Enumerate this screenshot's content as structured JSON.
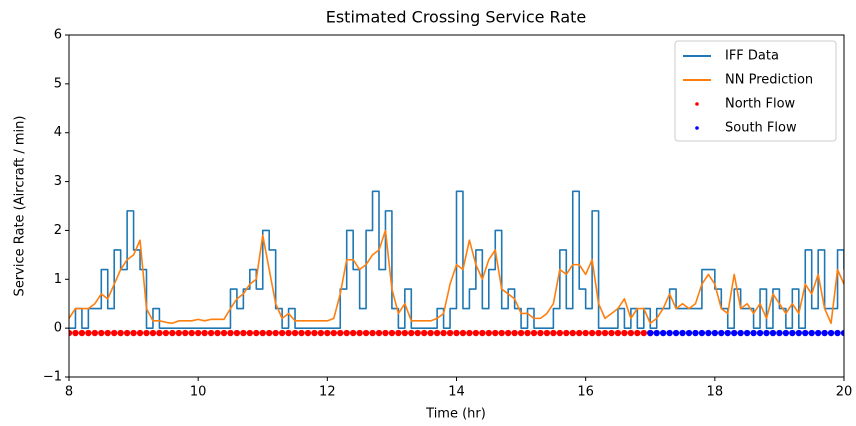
{
  "chart_data": {
    "type": "line",
    "title": "Estimated Crossing Service Rate",
    "x_label": "Time (hr)",
    "y_label": "Service Rate (Aircraft / min)",
    "xlim": [
      8,
      20
    ],
    "ylim": [
      -1,
      6
    ],
    "xticks": [
      8,
      10,
      12,
      14,
      16,
      18,
      20
    ],
    "yticks": [
      {
        "value": -1,
        "label": "−1"
      },
      0,
      1,
      2,
      3,
      4,
      5,
      6
    ],
    "legend": "upper right",
    "series": [
      {
        "name": "IFF Data",
        "color": "#1f77b4",
        "drawstyle": "steps-post",
        "x": [
          8.0,
          8.1,
          8.2,
          8.3,
          8.4,
          8.5,
          8.6,
          8.7,
          8.8,
          8.9,
          9.0,
          9.1,
          9.2,
          9.3,
          9.4,
          9.5,
          9.6,
          9.7,
          9.8,
          9.9,
          10.0,
          10.1,
          10.2,
          10.3,
          10.4,
          10.5,
          10.6,
          10.7,
          10.8,
          10.9,
          11.0,
          11.1,
          11.2,
          11.3,
          11.4,
          11.5,
          11.6,
          11.7,
          11.8,
          11.9,
          12.0,
          12.1,
          12.2,
          12.3,
          12.4,
          12.5,
          12.6,
          12.7,
          12.8,
          12.9,
          13.0,
          13.1,
          13.2,
          13.3,
          13.4,
          13.5,
          13.6,
          13.7,
          13.8,
          13.9,
          14.0,
          14.1,
          14.2,
          14.3,
          14.4,
          14.5,
          14.6,
          14.7,
          14.8,
          14.9,
          15.0,
          15.1,
          15.2,
          15.3,
          15.4,
          15.5,
          15.6,
          15.7,
          15.8,
          15.9,
          16.0,
          16.1,
          16.2,
          16.3,
          16.4,
          16.5,
          16.6,
          16.7,
          16.8,
          16.9,
          17.0,
          17.1,
          17.2,
          17.3,
          17.4,
          17.5,
          17.6,
          17.7,
          17.8,
          17.9,
          18.0,
          18.1,
          18.2,
          18.3,
          18.4,
          18.5,
          18.6,
          18.7,
          18.8,
          18.9,
          19.0,
          19.1,
          19.2,
          19.3,
          19.4,
          19.5,
          19.6,
          19.7,
          19.8,
          19.9,
          20.0
        ],
        "values": [
          0,
          0.4,
          0,
          0.4,
          0.4,
          1.2,
          0.4,
          1.6,
          1.2,
          2.4,
          1.6,
          1.2,
          0,
          0.4,
          0,
          0,
          0,
          0,
          0,
          0,
          0,
          0,
          0,
          0,
          0,
          0.8,
          0.4,
          0.8,
          1.2,
          0.8,
          2.0,
          1.6,
          0.4,
          0,
          0.4,
          0,
          0,
          0,
          0,
          0,
          0,
          0,
          0.8,
          2.0,
          1.2,
          0.4,
          2.0,
          2.8,
          1.2,
          2.4,
          0.4,
          0,
          0.8,
          0,
          0,
          0,
          0,
          0.4,
          0,
          0.4,
          2.8,
          0.4,
          0.8,
          1.6,
          0.4,
          1.2,
          2.0,
          0.4,
          0.8,
          0.4,
          0,
          0.4,
          0,
          0,
          0,
          0.4,
          1.6,
          0.4,
          2.8,
          0.8,
          0.4,
          2.4,
          0,
          0,
          0,
          0.4,
          0,
          0.4,
          0,
          0.4,
          0,
          0.4,
          0.4,
          0.8,
          0.4,
          0.4,
          0.4,
          0.4,
          1.2,
          1.2,
          0.8,
          0.4,
          0,
          0.8,
          0.4,
          0.4,
          0,
          0.8,
          0,
          0.8,
          0.4,
          0,
          0.8,
          0,
          1.6,
          0.4,
          1.6,
          0.4,
          0.4,
          1.6,
          1.2
        ]
      },
      {
        "name": "NN Prediction",
        "color": "#ff7f0e",
        "drawstyle": "default",
        "x": [
          8.0,
          8.1,
          8.2,
          8.3,
          8.4,
          8.5,
          8.6,
          8.7,
          8.8,
          8.9,
          9.0,
          9.1,
          9.2,
          9.3,
          9.4,
          9.5,
          9.6,
          9.7,
          9.8,
          9.9,
          10.0,
          10.1,
          10.2,
          10.3,
          10.4,
          10.5,
          10.6,
          10.7,
          10.8,
          10.9,
          11.0,
          11.1,
          11.2,
          11.3,
          11.4,
          11.5,
          11.6,
          11.7,
          11.8,
          11.9,
          12.0,
          12.1,
          12.2,
          12.3,
          12.4,
          12.5,
          12.6,
          12.7,
          12.8,
          12.9,
          13.0,
          13.1,
          13.2,
          13.3,
          13.4,
          13.5,
          13.6,
          13.7,
          13.8,
          13.9,
          14.0,
          14.1,
          14.2,
          14.3,
          14.4,
          14.5,
          14.6,
          14.7,
          14.8,
          14.9,
          15.0,
          15.1,
          15.2,
          15.3,
          15.4,
          15.5,
          15.6,
          15.7,
          15.8,
          15.9,
          16.0,
          16.1,
          16.2,
          16.3,
          16.4,
          16.5,
          16.6,
          16.7,
          16.8,
          16.9,
          17.0,
          17.1,
          17.2,
          17.3,
          17.4,
          17.5,
          17.6,
          17.7,
          17.8,
          17.9,
          18.0,
          18.1,
          18.2,
          18.3,
          18.4,
          18.5,
          18.6,
          18.7,
          18.8,
          18.9,
          19.0,
          19.1,
          19.2,
          19.3,
          19.4,
          19.5,
          19.6,
          19.7,
          19.8,
          19.9,
          20.0
        ],
        "values": [
          0.2,
          0.4,
          0.4,
          0.4,
          0.5,
          0.7,
          0.6,
          0.9,
          1.2,
          1.4,
          1.5,
          1.8,
          0.4,
          0.15,
          0.15,
          0.12,
          0.1,
          0.15,
          0.15,
          0.15,
          0.18,
          0.15,
          0.18,
          0.18,
          0.18,
          0.4,
          0.6,
          0.7,
          0.9,
          1.0,
          1.9,
          1.2,
          0.5,
          0.2,
          0.3,
          0.15,
          0.15,
          0.15,
          0.15,
          0.15,
          0.15,
          0.2,
          0.7,
          1.4,
          1.4,
          1.2,
          1.3,
          1.5,
          1.6,
          2.0,
          0.8,
          0.3,
          0.5,
          0.15,
          0.15,
          0.15,
          0.15,
          0.2,
          0.3,
          0.9,
          1.3,
          1.2,
          1.8,
          1.3,
          1.0,
          1.4,
          1.6,
          0.8,
          0.7,
          0.6,
          0.3,
          0.3,
          0.2,
          0.2,
          0.3,
          0.5,
          1.2,
          1.1,
          1.3,
          1.3,
          1.1,
          1.4,
          0.5,
          0.2,
          0.3,
          0.4,
          0.6,
          0.2,
          0.4,
          0.4,
          0.1,
          0.2,
          0.4,
          0.7,
          0.4,
          0.5,
          0.4,
          0.5,
          0.9,
          1.1,
          0.9,
          0.4,
          0.3,
          1.1,
          0.4,
          0.5,
          0.3,
          0.5,
          0.2,
          0.7,
          0.5,
          0.3,
          0.5,
          0.3,
          0.9,
          0.7,
          1.1,
          0.4,
          0.1,
          1.2,
          0.9
        ]
      },
      {
        "name": "North Flow",
        "color": "#ff0000",
        "drawstyle": "markers",
        "x": [
          8.0,
          8.1,
          8.2,
          8.3,
          8.4,
          8.5,
          8.6,
          8.7,
          8.8,
          8.9,
          9.0,
          9.1,
          9.2,
          9.3,
          9.4,
          9.5,
          9.6,
          9.7,
          9.8,
          9.9,
          10.0,
          10.1,
          10.2,
          10.3,
          10.4,
          10.5,
          10.6,
          10.7,
          10.8,
          10.9,
          11.0,
          11.1,
          11.2,
          11.3,
          11.4,
          11.5,
          11.6,
          11.7,
          11.8,
          11.9,
          12.0,
          12.1,
          12.2,
          12.3,
          12.4,
          12.5,
          12.6,
          12.7,
          12.8,
          12.9,
          13.0,
          13.1,
          13.2,
          13.3,
          13.4,
          13.5,
          13.6,
          13.7,
          13.8,
          13.9,
          14.0,
          14.1,
          14.2,
          14.3,
          14.4,
          14.5,
          14.6,
          14.7,
          14.8,
          14.9,
          15.0,
          15.1,
          15.2,
          15.3,
          15.4,
          15.5,
          15.6,
          15.7,
          15.8,
          15.9,
          16.0,
          16.1,
          16.2,
          16.3,
          16.4,
          16.5,
          16.6,
          16.7,
          16.8,
          16.9,
          17.0
        ],
        "values": [
          -0.1,
          -0.1,
          -0.1,
          -0.1,
          -0.1,
          -0.1,
          -0.1,
          -0.1,
          -0.1,
          -0.1,
          -0.1,
          -0.1,
          -0.1,
          -0.1,
          -0.1,
          -0.1,
          -0.1,
          -0.1,
          -0.1,
          -0.1,
          -0.1,
          -0.1,
          -0.1,
          -0.1,
          -0.1,
          -0.1,
          -0.1,
          -0.1,
          -0.1,
          -0.1,
          -0.1,
          -0.1,
          -0.1,
          -0.1,
          -0.1,
          -0.1,
          -0.1,
          -0.1,
          -0.1,
          -0.1,
          -0.1,
          -0.1,
          -0.1,
          -0.1,
          -0.1,
          -0.1,
          -0.1,
          -0.1,
          -0.1,
          -0.1,
          -0.1,
          -0.1,
          -0.1,
          -0.1,
          -0.1,
          -0.1,
          -0.1,
          -0.1,
          -0.1,
          -0.1,
          -0.1,
          -0.1,
          -0.1,
          -0.1,
          -0.1,
          -0.1,
          -0.1,
          -0.1,
          -0.1,
          -0.1,
          -0.1,
          -0.1,
          -0.1,
          -0.1,
          -0.1,
          -0.1,
          -0.1,
          -0.1,
          -0.1,
          -0.1,
          -0.1,
          -0.1,
          -0.1,
          -0.1,
          -0.1,
          -0.1,
          -0.1,
          -0.1,
          -0.1,
          -0.1,
          -0.1
        ]
      },
      {
        "name": "South Flow",
        "color": "#0000ff",
        "drawstyle": "markers",
        "x": [
          17.0,
          17.1,
          17.2,
          17.3,
          17.4,
          17.5,
          17.6,
          17.7,
          17.8,
          17.9,
          18.0,
          18.1,
          18.2,
          18.3,
          18.4,
          18.5,
          18.6,
          18.7,
          18.8,
          18.9,
          19.0,
          19.1,
          19.2,
          19.3,
          19.4,
          19.5,
          19.6,
          19.7,
          19.8,
          19.9,
          20.0
        ],
        "values": [
          -0.1,
          -0.1,
          -0.1,
          -0.1,
          -0.1,
          -0.1,
          -0.1,
          -0.1,
          -0.1,
          -0.1,
          -0.1,
          -0.1,
          -0.1,
          -0.1,
          -0.1,
          -0.1,
          -0.1,
          -0.1,
          -0.1,
          -0.1,
          -0.1,
          -0.1,
          -0.1,
          -0.1,
          -0.1,
          -0.1,
          -0.1,
          -0.1,
          -0.1,
          -0.1,
          -0.1
        ]
      }
    ]
  }
}
